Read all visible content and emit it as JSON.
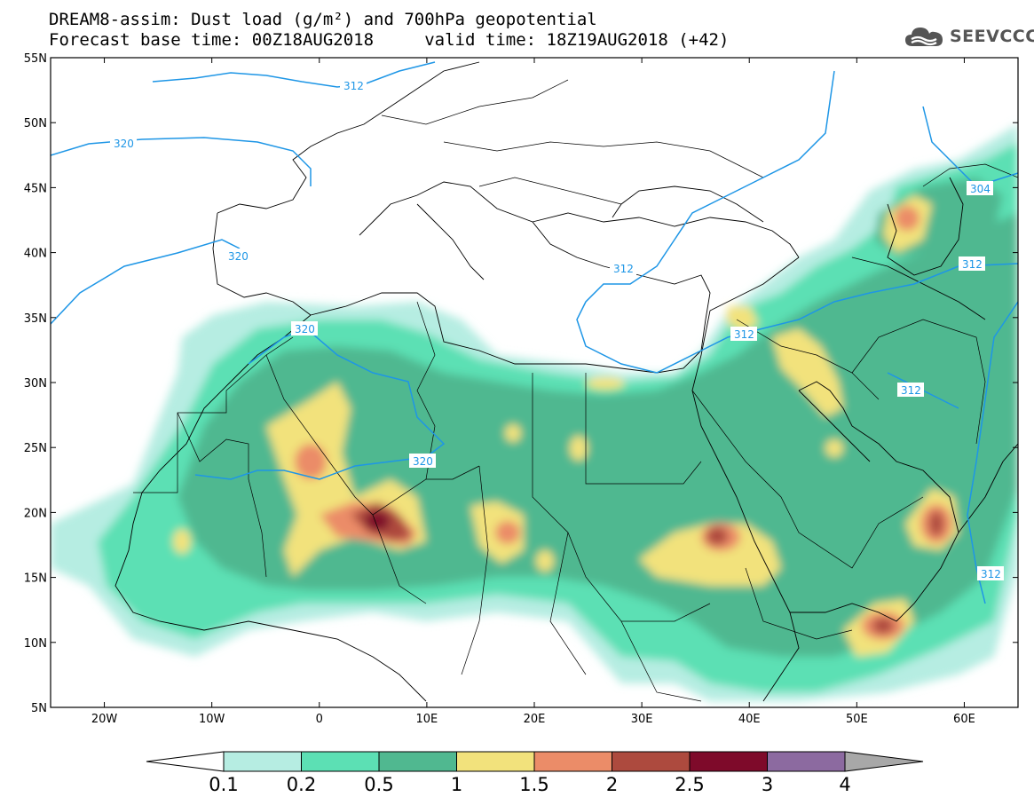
{
  "title": {
    "line1": "DREAM8-assim: Dust load (g/m²) and 700hPa geopotential",
    "line2": "Forecast base time: 00Z18AUG2018     valid time: 18Z19AUG2018 (+42)"
  },
  "logo": {
    "text": "SEEVCCC",
    "icon": "cloud-icon"
  },
  "map": {
    "lon_range": [
      -25,
      65
    ],
    "lat_range": [
      5,
      55
    ],
    "lon_ticks": [
      "20W",
      "10W",
      "0",
      "10E",
      "20E",
      "30E",
      "40E",
      "50E",
      "60E"
    ],
    "lat_ticks": [
      "55N",
      "50N",
      "45N",
      "40N",
      "35N",
      "30N",
      "25N",
      "20N",
      "15N",
      "10N",
      "5N"
    ],
    "contour_labels": [
      "312",
      "320",
      "320",
      "320",
      "320",
      "312",
      "312",
      "312",
      "304",
      "312",
      "312"
    ]
  },
  "colorbar": {
    "labels": [
      "0.1",
      "0.2",
      "0.5",
      "1",
      "1.5",
      "2",
      "2.5",
      "3",
      "4"
    ],
    "colors": [
      "#ffffff",
      "#b6ede2",
      "#5ce0b4",
      "#50b890",
      "#f2e27c",
      "#eb8c68",
      "#ad4a3e",
      "#7e0a2a",
      "#8c6aa0",
      "#a8a8a8"
    ]
  }
}
